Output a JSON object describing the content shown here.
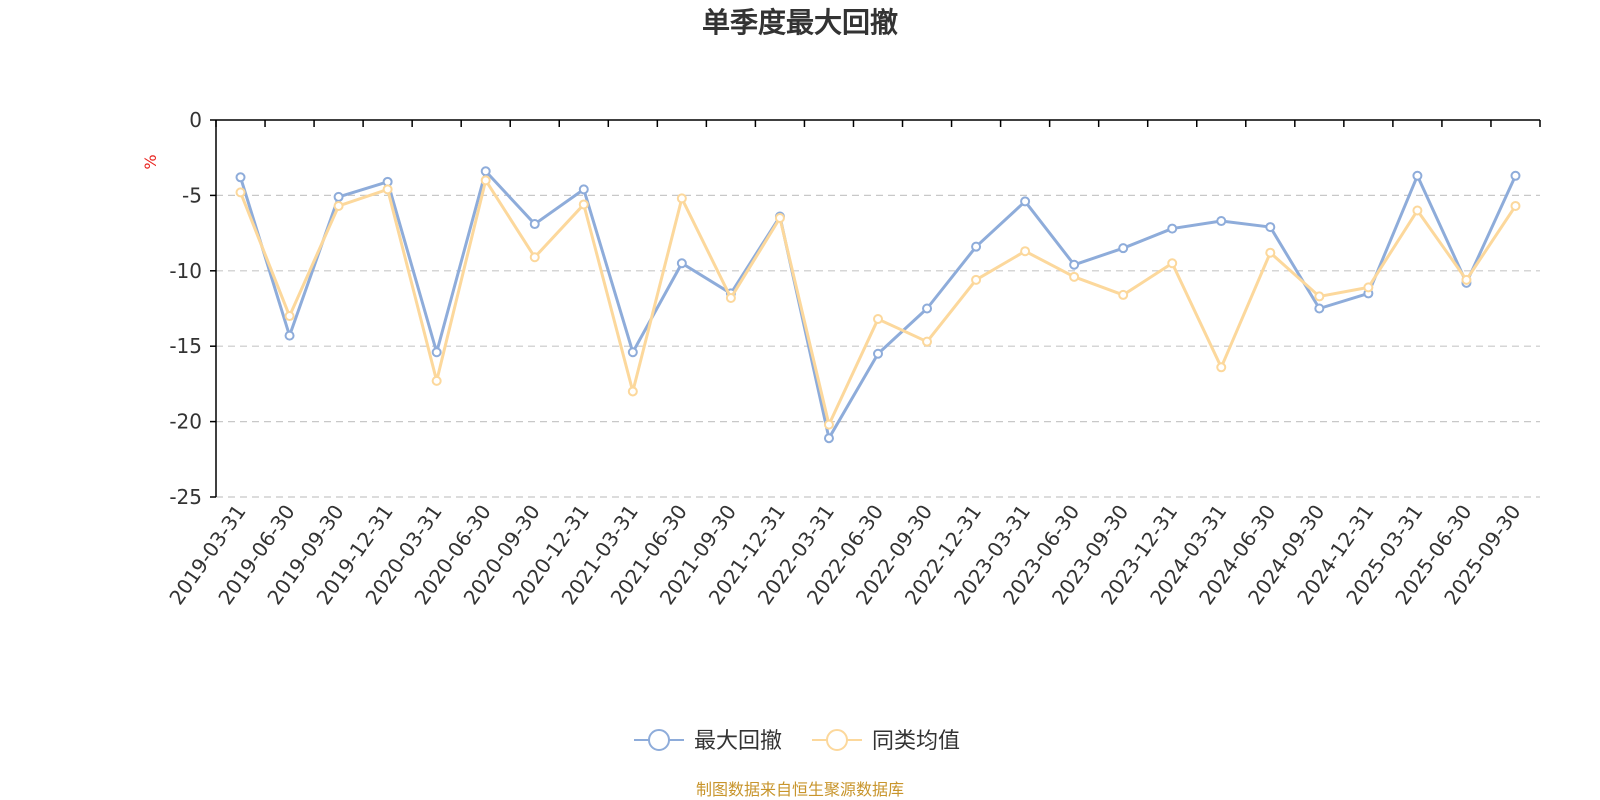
{
  "chart_data": {
    "type": "line",
    "title": "单季度最大回撤",
    "ylabel": "%",
    "xlabel": "",
    "ylim": [
      -25,
      0
    ],
    "yticks": [
      0,
      -5,
      -10,
      -15,
      -20,
      -25
    ],
    "ytick_labels": [
      "0",
      "-5",
      "-10",
      "-15",
      "-20",
      "-25"
    ],
    "grid": true,
    "legend_position": "bottom-center",
    "categories": [
      "2019-03-31",
      "2019-06-30",
      "2019-09-30",
      "2019-12-31",
      "2020-03-31",
      "2020-06-30",
      "2020-09-30",
      "2020-12-31",
      "2021-03-31",
      "2021-06-30",
      "2021-09-30",
      "2021-12-31",
      "2022-03-31",
      "2022-06-30",
      "2022-09-30",
      "2022-12-31",
      "2023-03-31",
      "2023-06-30",
      "2023-09-30",
      "2023-12-31",
      "2024-03-31",
      "2024-06-30",
      "2024-09-30",
      "2024-12-31",
      "2025-03-31",
      "2025-06-30",
      "2025-09-30"
    ],
    "series": [
      {
        "name": "最大回撤",
        "color": "#8eacda",
        "values": [
          -3.8,
          -14.3,
          -5.1,
          -4.1,
          -15.4,
          -3.4,
          -6.9,
          -4.6,
          -15.4,
          -9.5,
          -11.5,
          -6.4,
          -21.1,
          -15.5,
          -12.5,
          -8.4,
          -5.4,
          -9.6,
          -8.5,
          -7.2,
          -6.7,
          -7.1,
          -12.5,
          -11.5,
          -3.7,
          -10.8,
          -3.7
        ]
      },
      {
        "name": "同类均值",
        "color": "#fcd89c",
        "values": [
          -4.8,
          -13.0,
          -5.7,
          -4.6,
          -17.3,
          -4.0,
          -9.1,
          -5.6,
          -18.0,
          -5.2,
          -11.8,
          -6.5,
          -20.2,
          -13.2,
          -14.7,
          -10.6,
          -8.7,
          -10.4,
          -11.6,
          -9.5,
          -16.4,
          -8.8,
          -11.7,
          -11.1,
          -6.0,
          -10.6,
          -5.7
        ]
      }
    ],
    "source": "制图数据来自恒生聚源数据库",
    "source_color": "#c8952c"
  }
}
